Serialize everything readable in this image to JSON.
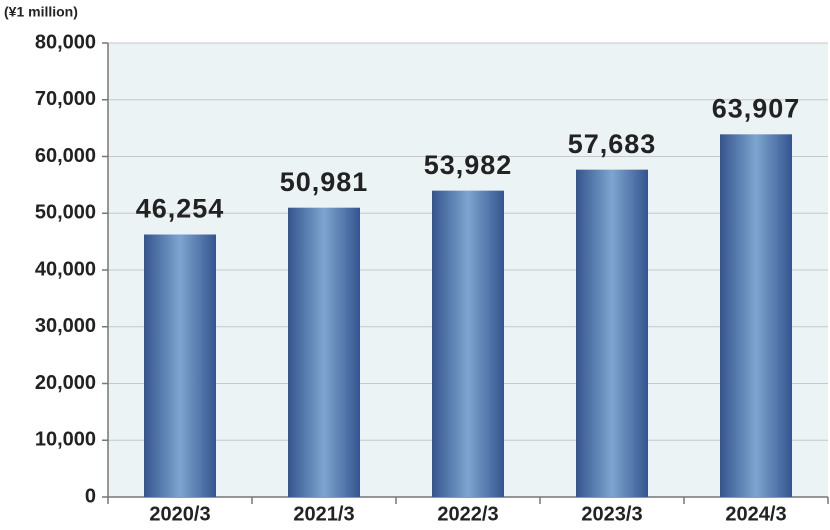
{
  "chart_data": {
    "type": "bar",
    "y_axis_label": "(¥1 million)",
    "categories": [
      "2020/3",
      "2021/3",
      "2022/3",
      "2023/3",
      "2024/3"
    ],
    "values": [
      46254,
      50981,
      53982,
      57683,
      63907
    ],
    "value_labels": [
      "46,254",
      "50,981",
      "53,982",
      "57,683",
      "63,907"
    ],
    "color": "#34558f",
    "ylim": [
      0,
      80000
    ],
    "yticks": [
      0,
      {
        "value": 10000,
        "label": "10,000"
      },
      {
        "value": 20000,
        "label": "20,000"
      },
      {
        "value": 30000,
        "label": "30,000"
      },
      {
        "value": 40000,
        "label": "40,000"
      },
      {
        "value": 50000,
        "label": "50,000"
      },
      {
        "value": 60000,
        "label": "60,000"
      },
      {
        "value": 70000,
        "label": "70,000"
      },
      {
        "value": 80000,
        "label": "80,000"
      }
    ],
    "grid": true
  }
}
